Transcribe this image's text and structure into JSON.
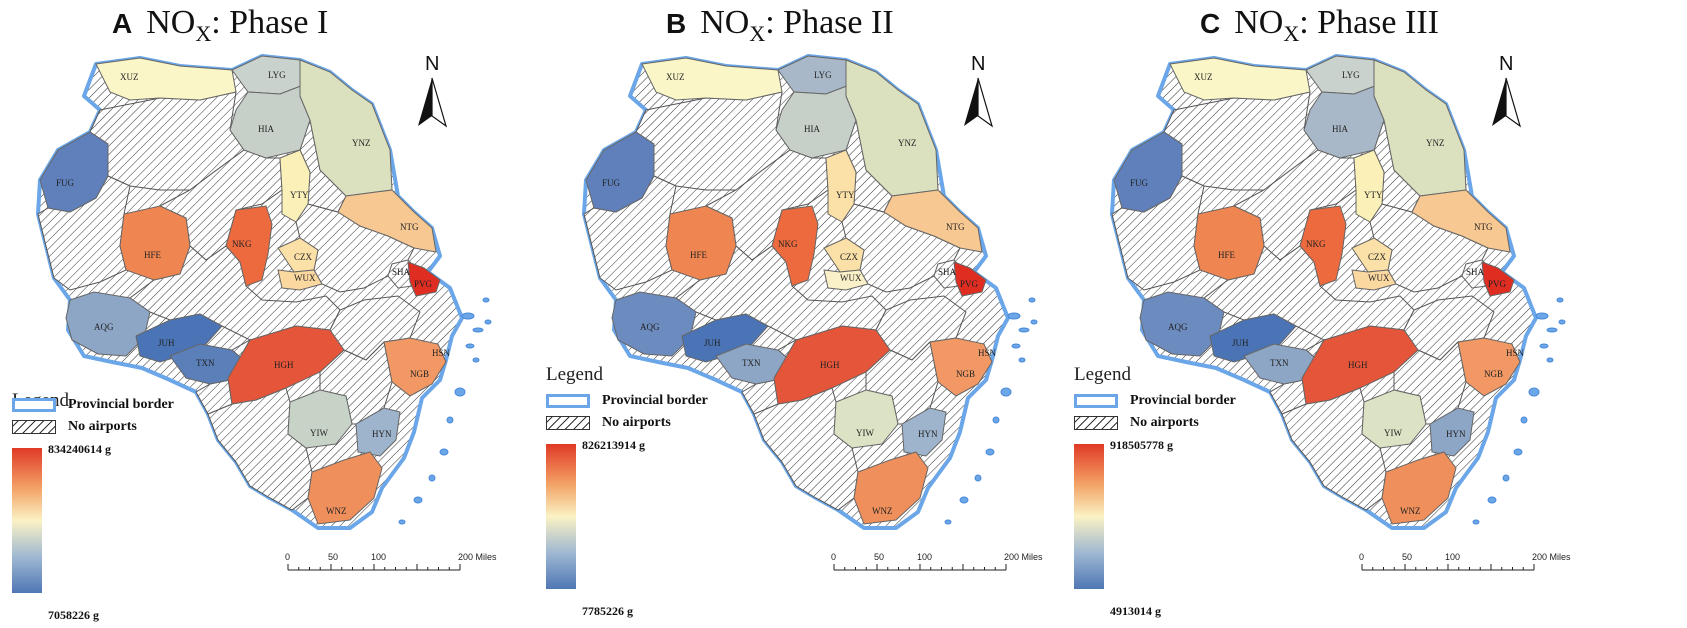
{
  "panels": [
    {
      "letter": "A",
      "species": "NO",
      "subscript": "X",
      "phase": ": Phase I",
      "ramp_max": "834240614 g",
      "ramp_min": "7058226 g"
    },
    {
      "letter": "B",
      "species": "NO",
      "subscript": "X",
      "phase": ": Phase II",
      "ramp_max": "826213914 g",
      "ramp_min": "7785226 g"
    },
    {
      "letter": "C",
      "species": "NO",
      "subscript": "X",
      "phase": ": Phase III",
      "ramp_max": "918505778 g",
      "ramp_min": "4913014 g"
    }
  ],
  "legend": {
    "title": "Legend",
    "provincial_border": "Provincial border",
    "no_airports": "No airports"
  },
  "north_label": "N",
  "scale_ticks": [
    "0",
    "50",
    "100",
    "200 Miles"
  ],
  "cities": [
    "XUZ",
    "LYG",
    "HIA",
    "YNZ",
    "YTY",
    "FUG",
    "NKG",
    "NTG",
    "HFE",
    "CZX",
    "WUX",
    "SHA",
    "PVG",
    "AQG",
    "JUH",
    "TXN",
    "HGH",
    "HSN",
    "NGB",
    "YIW",
    "HYN",
    "WNZ"
  ],
  "colors": {
    "provincial_border": "#6aa6e8",
    "ramp_high": "#e03a26",
    "ramp_mid": "#fbf2c4",
    "ramp_low": "#4f77b5"
  }
}
